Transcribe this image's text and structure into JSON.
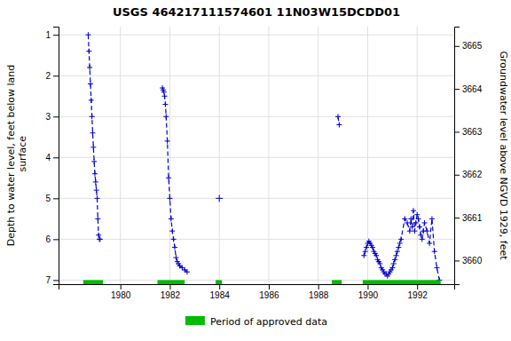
{
  "chart_data": {
    "type": "line",
    "title": "USGS 464217111574601 11N03W15DCDD01",
    "y_label": "Depth to water level, feet below land\n surface",
    "y2_label": "Groundwater level above NGVD 1929, feet",
    "xlim": [
      1977.5,
      1993.5
    ],
    "xticks": [
      1980,
      1982,
      1984,
      1986,
      1988,
      1990,
      1992
    ],
    "ylim": [
      7.1,
      0.8
    ],
    "yticks": [
      1,
      2,
      3,
      4,
      5,
      6,
      7
    ],
    "y2lim": [
      3659.45,
      3665.45
    ],
    "y2ticks": [
      3660,
      3661,
      3662,
      3663,
      3664,
      3665
    ],
    "grid": true,
    "series": [
      {
        "type": "line",
        "color": "#0000cc",
        "marker": "plus",
        "line_style": "dashed",
        "x": [
          1978.7,
          1978.73,
          1978.76,
          1978.79,
          1978.82,
          1978.85,
          1978.88,
          1978.91,
          1978.94,
          1978.97,
          1979.0,
          1979.03,
          1979.06,
          1979.09,
          1979.12,
          1979.15,
          1979.18
        ],
        "values": [
          1.0,
          1.4,
          1.8,
          2.2,
          2.6,
          3.0,
          3.4,
          3.75,
          4.1,
          4.4,
          4.6,
          4.8,
          5.0,
          5.5,
          5.9,
          6.0,
          6.0
        ]
      },
      {
        "type": "line",
        "color": "#0000cc",
        "marker": "plus",
        "line_style": "dashed",
        "x": [
          1981.7,
          1981.73,
          1981.76,
          1981.79,
          1981.82,
          1981.85,
          1981.9,
          1981.95,
          1982.0,
          1982.05,
          1982.1,
          1982.15,
          1982.2,
          1982.25,
          1982.3,
          1982.35,
          1982.4,
          1982.5,
          1982.6,
          1982.7
        ],
        "values": [
          2.3,
          2.35,
          2.4,
          2.5,
          2.7,
          3.0,
          3.6,
          4.5,
          5.0,
          5.5,
          5.8,
          6.0,
          6.2,
          6.45,
          6.55,
          6.6,
          6.65,
          6.7,
          6.75,
          6.8
        ]
      },
      {
        "type": "scatter",
        "color": "#0000cc",
        "marker": "plus",
        "line_style": "none",
        "x": [
          1984.0
        ],
        "values": [
          5.0
        ]
      },
      {
        "type": "line",
        "color": "#0000cc",
        "marker": "plus",
        "line_style": "dashed",
        "x": [
          1988.8,
          1988.85
        ],
        "values": [
          3.0,
          3.2
        ]
      },
      {
        "type": "line",
        "color": "#0000cc",
        "marker": "plus",
        "line_style": "dashed",
        "x": [
          1989.85,
          1989.9,
          1989.95,
          1990.0,
          1990.05,
          1990.1,
          1990.15,
          1990.2,
          1990.25,
          1990.3,
          1990.35,
          1990.4,
          1990.45,
          1990.5,
          1990.55,
          1990.6,
          1990.65,
          1990.7,
          1990.75,
          1990.8,
          1990.85,
          1990.9,
          1990.95,
          1991.0,
          1991.05,
          1991.1,
          1991.15,
          1991.2,
          1991.25,
          1991.3,
          1991.35,
          1991.5,
          1991.6,
          1991.7,
          1991.75,
          1991.8,
          1991.85,
          1991.9,
          1991.95,
          1992.0,
          1992.05,
          1992.1,
          1992.15,
          1992.2,
          1992.25,
          1992.3,
          1992.4,
          1992.5,
          1992.6,
          1992.7,
          1992.8,
          1992.9
        ],
        "values": [
          6.4,
          6.3,
          6.2,
          6.1,
          6.05,
          6.1,
          6.15,
          6.2,
          6.3,
          6.35,
          6.4,
          6.5,
          6.55,
          6.6,
          6.7,
          6.75,
          6.8,
          6.85,
          6.85,
          6.9,
          6.85,
          6.8,
          6.75,
          6.7,
          6.6,
          6.5,
          6.4,
          6.3,
          6.2,
          6.1,
          6.0,
          5.5,
          5.6,
          5.8,
          5.5,
          5.7,
          5.3,
          5.8,
          5.6,
          5.4,
          5.5,
          5.7,
          5.9,
          6.0,
          5.8,
          5.6,
          5.8,
          6.1,
          5.5,
          6.3,
          6.7,
          7.0
        ]
      },
      {
        "type": "bar",
        "orientation": "horizontal",
        "name": "Period of approved data",
        "color": "#00bb00",
        "starts": [
          1978.5,
          1981.5,
          1983.85,
          1988.55,
          1989.8
        ],
        "ends": [
          1979.3,
          1982.6,
          1984.1,
          1988.95,
          1992.95
        ],
        "base": 7.0,
        "height": 0.1
      }
    ]
  }
}
